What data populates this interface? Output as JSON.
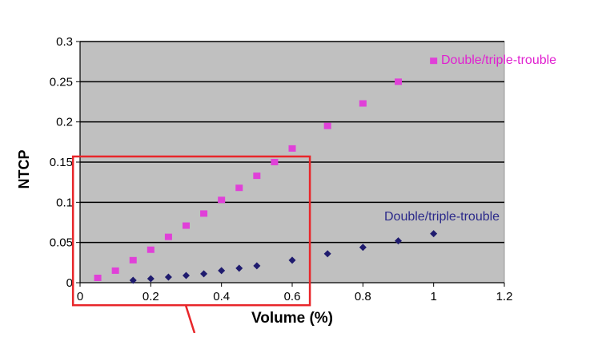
{
  "chart_data": {
    "type": "scatter",
    "title": "",
    "xlabel": "Volume (%)",
    "ylabel": "NTCP",
    "xlim": [
      0,
      1.2
    ],
    "ylim": [
      0,
      0.3
    ],
    "x_ticks": [
      "0",
      "0.2",
      "0.4",
      "0.6",
      "0.8",
      "1",
      "1.2"
    ],
    "y_ticks": [
      "0",
      "0.05",
      "0.1",
      "0.15",
      "0.2",
      "0.25",
      "0.3"
    ],
    "grid": "horizontal",
    "plot_background": "#c0c0c0",
    "highlight_box": {
      "x_range": [
        -0.02,
        0.65
      ],
      "y_range": [
        -0.028,
        0.157
      ],
      "color": "#e8262a"
    },
    "series": [
      {
        "name": "Double/triple-trouble",
        "color": "#e040d8",
        "marker": "square",
        "x": [
          0.05,
          0.1,
          0.15,
          0.2,
          0.25,
          0.3,
          0.35,
          0.4,
          0.45,
          0.5,
          0.55,
          0.6,
          0.7,
          0.8,
          0.9,
          1.0
        ],
        "y": [
          0.006,
          0.015,
          0.028,
          0.041,
          0.057,
          0.071,
          0.086,
          0.103,
          0.118,
          0.133,
          0.15,
          0.167,
          0.195,
          0.223,
          0.25,
          0.276
        ]
      },
      {
        "name": "Double/triple-trouble",
        "color": "#1f1b6e",
        "marker": "diamond",
        "x": [
          0.15,
          0.2,
          0.25,
          0.3,
          0.35,
          0.4,
          0.45,
          0.5,
          0.6,
          0.7,
          0.8,
          0.9,
          1.0
        ],
        "y": [
          0.003,
          0.005,
          0.007,
          0.009,
          0.011,
          0.015,
          0.018,
          0.021,
          0.028,
          0.036,
          0.044,
          0.052,
          0.061
        ]
      }
    ],
    "label_colors": {
      "magenta": "#e020d0",
      "navy": "#2b2a8a"
    }
  }
}
